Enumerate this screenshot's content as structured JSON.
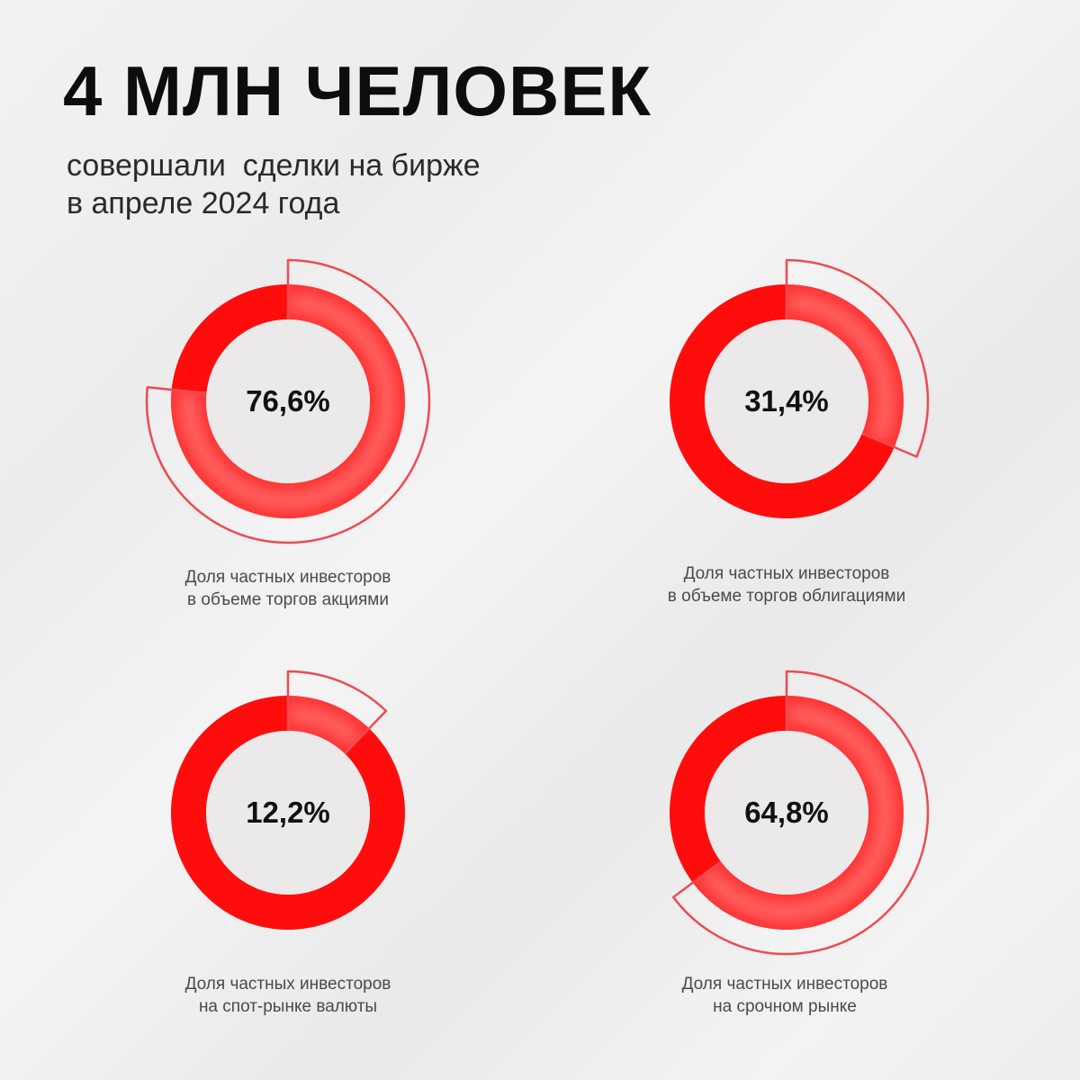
{
  "title": "4 МЛН ЧЕЛОВЕК",
  "subtitle": {
    "line1": "совершали  сделки на бирже",
    "line2": "в апреле 2024 года"
  },
  "colors": {
    "accent": "#ff0d0d",
    "highlight": "#ff5a5a",
    "center": "#ebe9ea",
    "outline": "#ef4a52"
  },
  "chart_data": {
    "type": "pie",
    "charts": [
      {
        "percent": 76.6,
        "label": "76,6%",
        "caption": [
          "Доля частных инвесторов",
          "в объеме торгов акциями"
        ]
      },
      {
        "percent": 31.4,
        "label": "31,4%",
        "caption": [
          "Доля частных инвесторов",
          "в объеме торгов облигациями"
        ]
      },
      {
        "percent": 12.2,
        "label": "12,2%",
        "caption": [
          "Доля частных инвесторов",
          "на спот-рынке валюты"
        ]
      },
      {
        "percent": 64.8,
        "label": "64,8%",
        "caption": [
          "Доля частных инвесторов",
          "на срочном рынке"
        ]
      }
    ]
  }
}
